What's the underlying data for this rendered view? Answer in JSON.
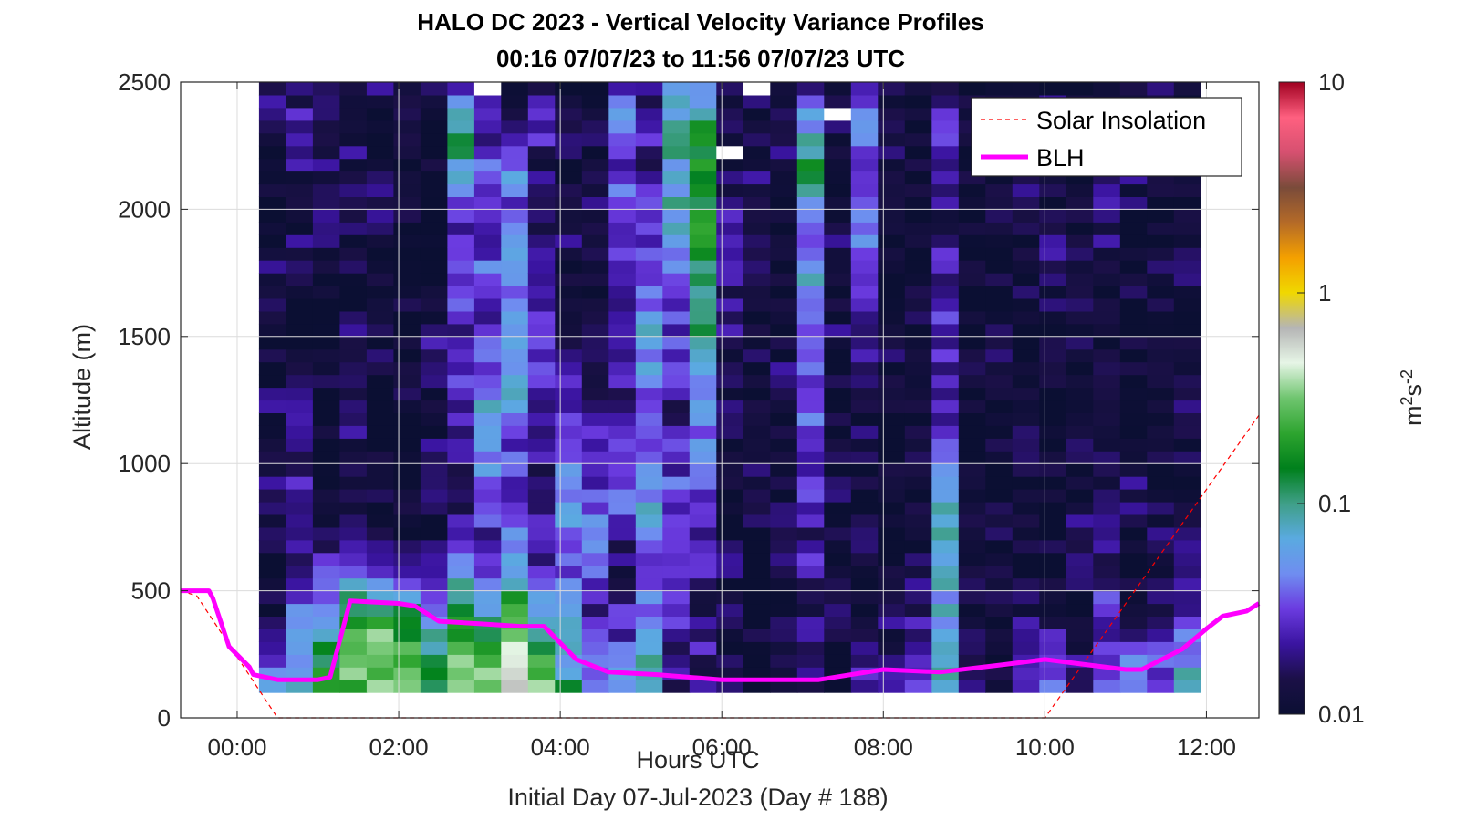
{
  "chart_data": {
    "type": "heatmap",
    "title": "HALO DC 2023 - Vertical Velocity Variance Profiles",
    "subtitle": "00:16 07/07/23 to 11:56 07/07/23  UTC",
    "xlabel": "Hours UTC",
    "xlabel2": "Initial Day 07-Jul-2023 (Day # 188)",
    "ylabel": "Altitude (m)",
    "xlim": [
      -0.7,
      12.65
    ],
    "ylim": [
      0,
      2500
    ],
    "xticks": [
      0,
      2,
      4,
      6,
      8,
      10,
      12
    ],
    "xtick_labels": [
      "00:00",
      "02:00",
      "04:00",
      "06:00",
      "08:00",
      "10:00",
      "12:00"
    ],
    "yticks": [
      0,
      500,
      1000,
      1500,
      2000,
      2500
    ],
    "ytick_labels": [
      "0",
      "500",
      "1000",
      "1500",
      "2000",
      "2500"
    ],
    "grid": true,
    "legend_position": "top-right",
    "heatmap": {
      "x_start_hours": 0.27,
      "x_end_hours": 11.93,
      "num_columns": 35,
      "altitude_bottom_m": 100,
      "altitude_top_m": 2500,
      "altitude_bin_m": 50,
      "units": "m^2s^-2",
      "log_scale": true,
      "column_profiles_log10": [
        [
          -1.2,
          -1.6,
          -1.9,
          -2.0,
          -1.8,
          -1.7,
          -1.9,
          -1.8,
          -2.0,
          -1.9,
          -1.8,
          -1.9,
          -2.0,
          -1.9,
          -1.8,
          -1.7
        ],
        [
          -1.2,
          -1.3,
          -1.5,
          -1.8,
          -1.7,
          -1.6,
          -1.8,
          -1.8,
          -1.9,
          -2.0,
          -1.9,
          -1.8,
          -1.9,
          -1.8,
          -1.6,
          -1.8
        ],
        [
          -1.0,
          -1.1,
          -1.3,
          -1.6,
          -1.8,
          -1.9,
          -2.0,
          -1.9,
          -1.8,
          -2.0,
          -2.0,
          -1.9,
          -1.7,
          -1.8,
          -1.7,
          -1.8
        ],
        [
          -0.9,
          -0.8,
          -1.1,
          -1.5,
          -1.9,
          -2.0,
          -1.8,
          -1.8,
          -1.9,
          -1.8,
          -2.0,
          -1.9,
          -1.7,
          -1.8,
          -1.8,
          -1.9
        ],
        [
          -0.9,
          -0.7,
          -1.0,
          -1.6,
          -1.8,
          -1.9,
          -2.0,
          -2.0,
          -1.9,
          -1.8,
          -1.9,
          -2.0,
          -1.8,
          -1.9,
          -2.0,
          -1.8
        ],
        [
          -0.9,
          -0.8,
          -1.2,
          -1.7,
          -1.9,
          -2.0,
          -2.0,
          -1.9,
          -2.0,
          -2.0,
          -1.9,
          -1.9,
          -2.0,
          -1.9,
          -1.8,
          -1.9
        ],
        [
          -1.0,
          -1.1,
          -1.4,
          -1.8,
          -1.9,
          -1.9,
          -1.8,
          -1.9,
          -1.7,
          -1.8,
          -2.0,
          -1.9,
          -2.0,
          -2.0,
          -1.9,
          -1.7
        ],
        [
          -0.8,
          -0.9,
          -1.0,
          -1.3,
          -1.7,
          -1.8,
          -1.7,
          -1.6,
          -1.5,
          -1.6,
          -1.4,
          -1.5,
          -1.6,
          -1.1,
          -1.0,
          -1.6
        ],
        [
          -0.9,
          -1.1,
          -1.3,
          -1.5,
          -1.6,
          -1.4,
          -1.3,
          -1.2,
          -1.4,
          -1.6,
          -1.4,
          -1.5,
          -1.6,
          -1.3,
          -1.7,
          -1.8
        ],
        [
          -0.6,
          -0.8,
          -1.0,
          -1.2,
          -1.4,
          -1.6,
          -1.5,
          -1.3,
          -1.2,
          -1.3,
          -1.4,
          -1.3,
          -1.5,
          -1.3,
          -1.7,
          -1.9
        ],
        [
          -0.8,
          -1.1,
          -1.3,
          -1.6,
          -1.7,
          -1.8,
          -1.7,
          -1.6,
          -1.5,
          -1.6,
          -1.7,
          -1.8,
          -1.9,
          -1.8,
          -1.6,
          -1.7
        ],
        [
          -1.2,
          -1.4,
          -1.3,
          -1.5,
          -1.3,
          -1.2,
          -1.4,
          -1.7,
          -1.6,
          -1.8,
          -1.9,
          -1.8,
          -1.9,
          -2.0,
          -1.8,
          -1.9
        ],
        [
          -1.5,
          -1.6,
          -1.7,
          -1.5,
          -1.4,
          -1.5,
          -1.6,
          -1.7,
          -1.8,
          -1.9,
          -2.0,
          -1.9,
          -1.8,
          -1.9,
          -1.9,
          -2.0
        ],
        [
          -1.4,
          -1.6,
          -1.7,
          -1.8,
          -1.6,
          -1.4,
          -1.5,
          -1.7,
          -1.6,
          -1.7,
          -1.6,
          -1.5,
          -1.4,
          -1.6,
          -1.3,
          -1.5
        ],
        [
          -1.3,
          -1.2,
          -1.4,
          -1.5,
          -1.3,
          -1.2,
          -1.4,
          -1.5,
          -1.3,
          -1.2,
          -1.4,
          -1.5,
          -1.6,
          -1.7,
          -1.6,
          -1.8
        ],
        [
          -1.8,
          -1.7,
          -1.6,
          -1.7,
          -1.6,
          -1.5,
          -1.6,
          -1.7,
          -1.5,
          -1.6,
          -1.4,
          -1.2,
          -1.1,
          -1.2,
          -1.0,
          -1.4
        ],
        [
          -1.8,
          -1.7,
          -1.8,
          -1.6,
          -1.7,
          -1.5,
          -1.4,
          -1.3,
          -1.2,
          -1.0,
          -0.9,
          -0.8,
          -0.8,
          -0.7,
          -0.9,
          -1.2
        ],
        [
          -1.9,
          -2.0,
          -1.9,
          -1.8,
          -1.9,
          -2.0,
          -1.9,
          -1.8,
          -1.9,
          -1.7,
          -1.8,
          -1.6,
          -1.7,
          -1.9,
          -1.8,
          -1.9
        ],
        [
          -1.9,
          -2.0,
          -1.9,
          -2.0,
          -1.9,
          -1.8,
          -2.0,
          -2.0,
          -1.9,
          -2.0,
          -1.9,
          -1.8,
          -1.7,
          -1.8,
          -1.9,
          -1.8
        ],
        [
          -1.9,
          -1.8,
          -2.0,
          -1.9,
          -1.8,
          -1.9,
          -2.0,
          -1.9,
          -1.8,
          -2.0,
          -1.9,
          -2.0,
          -1.9,
          -1.8,
          -1.9,
          -2.0
        ],
        [
          -1.8,
          -1.7,
          -1.8,
          -1.6,
          -1.7,
          -1.5,
          -1.6,
          -1.4,
          -1.5,
          -1.3,
          -1.2,
          -1.4,
          -1.3,
          -0.8,
          -1.2,
          -1.6
        ],
        [
          -1.9,
          -2.0,
          -1.9,
          -2.0,
          -1.9,
          -1.8,
          -2.0,
          -1.9,
          -1.9,
          -1.8,
          -1.9,
          -1.8,
          -2.0,
          -1.9,
          -1.8,
          -2.0
        ],
        [
          -1.7,
          -1.8,
          -1.9,
          -1.8,
          -1.9,
          -2.0,
          -1.9,
          -1.8,
          -1.8,
          -1.6,
          -1.5,
          -1.4,
          -1.4,
          -1.5,
          -1.3,
          -1.6
        ],
        [
          -1.8,
          -1.9,
          -1.8,
          -1.9,
          -2.0,
          -1.9,
          -2.0,
          -2.0,
          -1.9,
          -1.9,
          -2.0,
          -1.9,
          -1.8,
          -1.9,
          -1.9,
          -1.8
        ],
        [
          -1.6,
          -1.7,
          -1.8,
          -1.9,
          -2.0,
          -1.9,
          -1.8,
          -1.9,
          -1.8,
          -1.9,
          -2.0,
          -1.9,
          -2.0,
          -1.9,
          -1.9,
          -2.0
        ],
        [
          -1.3,
          -1.2,
          -1.3,
          -1.1,
          -1.0,
          -1.2,
          -1.4,
          -1.6,
          -1.7,
          -1.5,
          -1.6,
          -1.7,
          -1.8,
          -1.7,
          -1.6,
          -1.8
        ],
        [
          -1.9,
          -2.0,
          -1.9,
          -2.0,
          -1.9,
          -2.0,
          -1.9,
          -2.0,
          -1.9,
          -2.0,
          -2.0,
          -1.9,
          -2.0,
          -1.9,
          -1.9,
          -2.0
        ],
        [
          -1.9,
          -2.0,
          -1.9,
          -1.8,
          -1.9,
          -2.0,
          -1.9,
          -2.0,
          -1.9,
          -1.8,
          -1.9,
          -2.0,
          -1.9,
          -1.8,
          -2.0,
          -1.9
        ],
        [
          -1.9,
          -1.8,
          -1.9,
          -2.0,
          -1.9,
          -2.0,
          -1.9,
          -1.8,
          -1.9,
          -2.0,
          -1.9,
          -2.0,
          -1.9,
          -1.8,
          -1.9,
          -2.0
        ],
        [
          -1.7,
          -1.8,
          -1.9,
          -2.0,
          -1.9,
          -2.0,
          -1.9,
          -2.0,
          -1.9,
          -2.0,
          -1.8,
          -1.7,
          -1.9,
          -1.8,
          -1.7,
          -1.9
        ],
        [
          -1.8,
          -1.9,
          -2.0,
          -1.8,
          -1.7,
          -1.9,
          -1.8,
          -1.9,
          -2.0,
          -1.9,
          -1.8,
          -1.9,
          -2.0,
          -1.9,
          -1.8,
          -1.9
        ],
        [
          -1.6,
          -1.7,
          -1.6,
          -1.8,
          -1.7,
          -1.8,
          -1.9,
          -2.0,
          -1.9,
          -2.0,
          -1.9,
          -1.8,
          -1.7,
          -1.8,
          -1.9,
          -1.8
        ],
        [
          -1.5,
          -1.7,
          -1.9,
          -2.0,
          -1.9,
          -1.8,
          -1.9,
          -2.0,
          -1.9,
          -2.0,
          -1.9,
          -2.0,
          -1.9,
          -1.8,
          -1.9,
          -1.8
        ],
        [
          -1.6,
          -1.7,
          -1.8,
          -1.9,
          -1.8,
          -1.9,
          -2.0,
          -1.9,
          -2.0,
          -1.9,
          -1.8,
          -1.9,
          -2.0,
          -1.9,
          -1.8,
          -1.9
        ],
        [
          -1.3,
          -1.5,
          -1.7,
          -1.8,
          -1.9,
          -2.0,
          -1.9,
          -1.8,
          -1.9,
          -2.0,
          -1.9,
          -1.8,
          -1.9,
          -2.0,
          -1.9,
          -2.0
        ]
      ],
      "column_surface_boost_log10": [
        0.0,
        0.3,
        0.6,
        0.8,
        0.9,
        0.8,
        0.6,
        0.9,
        1.2,
        1.3,
        1.1,
        0.6,
        0.3,
        0.3,
        0.3,
        0.2,
        0.1,
        0.1,
        0.0,
        0.0,
        0.1,
        0.0,
        0.1,
        0.1,
        0.3,
        0.4,
        0.3,
        0.2,
        0.4,
        0.6,
        0.4,
        0.5,
        0.6,
        0.5,
        0.6
      ]
    },
    "series": [
      {
        "name": "Solar Insolation",
        "color": "#ff0000",
        "style": "dashed",
        "x": [
          -0.7,
          -0.5,
          0.5,
          10.0,
          12.65
        ],
        "y": [
          500,
          480,
          0,
          0,
          1190
        ]
      },
      {
        "name": "BLH",
        "color": "#ff00ff",
        "style": "solid",
        "x": [
          -0.7,
          -0.35,
          -0.3,
          -0.1,
          0.15,
          0.2,
          0.5,
          1.0,
          1.15,
          1.4,
          2.0,
          2.2,
          2.5,
          3.0,
          3.5,
          3.8,
          4.2,
          4.6,
          5.2,
          6.0,
          6.5,
          7.2,
          8.0,
          8.7,
          9.5,
          10.0,
          10.5,
          11.0,
          11.2,
          11.7,
          12.0,
          12.2,
          12.5,
          12.65
        ],
        "y": [
          500,
          500,
          470,
          280,
          200,
          170,
          150,
          150,
          160,
          460,
          450,
          440,
          380,
          370,
          360,
          360,
          230,
          180,
          170,
          150,
          150,
          150,
          190,
          180,
          210,
          230,
          210,
          190,
          190,
          270,
          350,
          400,
          420,
          450
        ]
      }
    ],
    "colorbar": {
      "label": "m2s-2",
      "min": 0.01,
      "max": 10,
      "scale": "log",
      "ticks": [
        0.01,
        0.1,
        1,
        10
      ],
      "tick_labels": [
        "0.01",
        "0.1",
        "1",
        "10"
      ],
      "colors": [
        "#0b0f33",
        "#1b1047",
        "#3a14a0",
        "#6b3be0",
        "#6f8df0",
        "#5aaae0",
        "#3f9f88",
        "#00801c",
        "#2da42f",
        "#6fc56f",
        "#e6f5e6",
        "#b5b5b5",
        "#f0d800",
        "#f4a000",
        "#b46a28",
        "#7a4b3a",
        "#d65070",
        "#ff6080",
        "#a00020"
      ]
    }
  }
}
